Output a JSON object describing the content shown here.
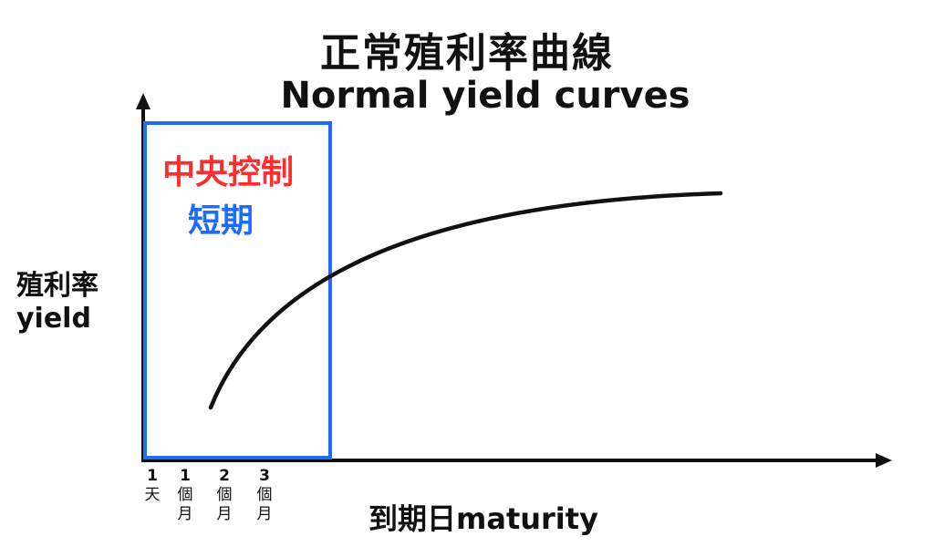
{
  "title": {
    "zh": "正常殖利率曲線",
    "en": "Normal yield curves"
  },
  "box": {
    "label_red": "中央控制",
    "label_blue": "短期",
    "color_red": "#ff2d2d",
    "color_blue": "#1f6bff"
  },
  "axes": {
    "ylabel_zh": "殖利率",
    "ylabel_en": "yield",
    "xlabel": "到期日maturity",
    "ticks": [
      {
        "num": "1",
        "line1": "天",
        "line2": ""
      },
      {
        "num": "1",
        "line1": "個",
        "line2": "月"
      },
      {
        "num": "2",
        "line1": "個",
        "line2": "月"
      },
      {
        "num": "3",
        "line1": "個",
        "line2": "月"
      }
    ]
  }
}
